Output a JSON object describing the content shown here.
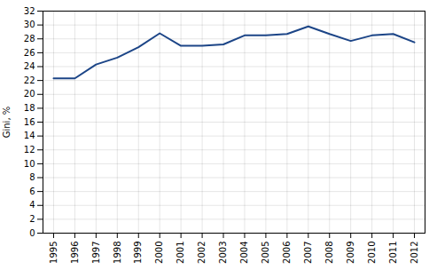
{
  "chart_data": {
    "type": "line",
    "x": [
      1995,
      1996,
      1997,
      1998,
      1999,
      2000,
      2001,
      2002,
      2003,
      2004,
      2005,
      2006,
      2007,
      2008,
      2009,
      2010,
      2011,
      2012
    ],
    "values": [
      22.3,
      22.3,
      24.3,
      25.3,
      26.8,
      28.8,
      27.0,
      27.0,
      27.2,
      28.5,
      28.5,
      28.7,
      29.8,
      28.7,
      27.7,
      28.5,
      28.7,
      27.5
    ],
    "color": "#1c4587",
    "ylabel": "Gini, %",
    "xlim": [
      1994.5,
      2012.5
    ],
    "xticks": [
      1995,
      1996,
      1997,
      1998,
      1999,
      2000,
      2001,
      2002,
      2003,
      2004,
      2005,
      2006,
      2007,
      2008,
      2009,
      2010,
      2011,
      2012
    ],
    "ylim": [
      0,
      32
    ],
    "yticks": [
      0,
      2,
      4,
      6,
      8,
      10,
      12,
      14,
      16,
      18,
      20,
      22,
      24,
      26,
      28,
      30,
      32
    ],
    "grid": true
  }
}
